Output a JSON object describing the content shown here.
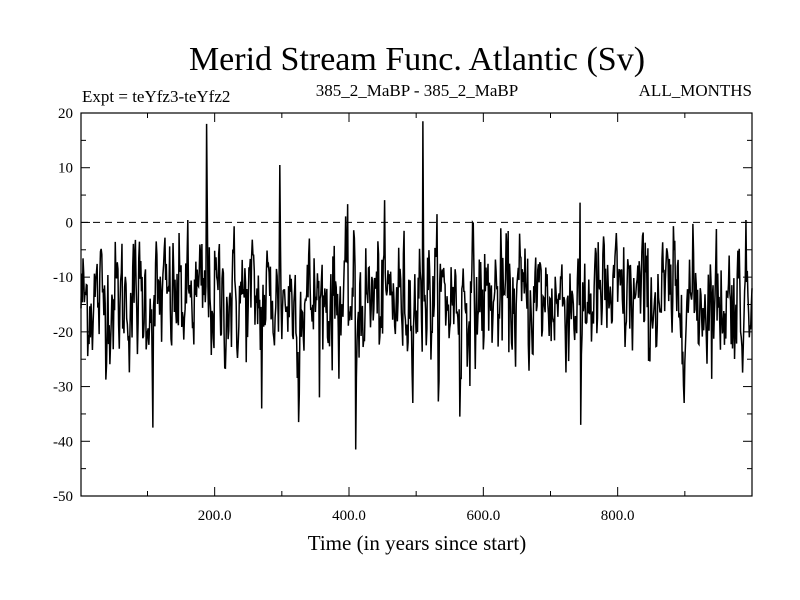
{
  "chart_data": {
    "type": "line",
    "title": "Merid Stream Func. Atlantic (Sv)",
    "subtitle_left": "Expt = teYfz3-teYfz2",
    "subtitle_center": "385_2_MaBP - 385_2_MaBP",
    "subtitle_right": "ALL_MONTHS",
    "xlabel": "Time (in years since start)",
    "ylabel": "",
    "xlim": [
      1,
      1000
    ],
    "ylim": [
      -50,
      20
    ],
    "x_ticks": [
      200,
      400,
      600,
      800
    ],
    "x_tick_labels": [
      "200.0",
      "400.0",
      "600.0",
      "800.0"
    ],
    "y_ticks": [
      20,
      10,
      0,
      -10,
      -20,
      -30,
      -40,
      -50
    ],
    "y_tick_labels": [
      "20",
      "10",
      "0",
      "-10",
      "-20",
      "-30",
      "-40",
      "-50"
    ],
    "reference_line": {
      "y": 0,
      "style": "dashed"
    },
    "series": [
      {
        "name": "Merid Stream Func. Atlantic",
        "baseline_mean": -14,
        "noise_sd": 5.5,
        "n_points": 1000,
        "peaks": [
          {
            "x": 188,
            "y": 18
          },
          {
            "x": 297,
            "y": 10.5
          },
          {
            "x": 510,
            "y": 18.5
          },
          {
            "x": 108,
            "y": -37.5
          },
          {
            "x": 410,
            "y": -41.5
          },
          {
            "x": 325,
            "y": -36.5
          },
          {
            "x": 745,
            "y": -37
          },
          {
            "x": 270,
            "y": -34
          },
          {
            "x": 565,
            "y": -35.5
          }
        ]
      }
    ]
  }
}
